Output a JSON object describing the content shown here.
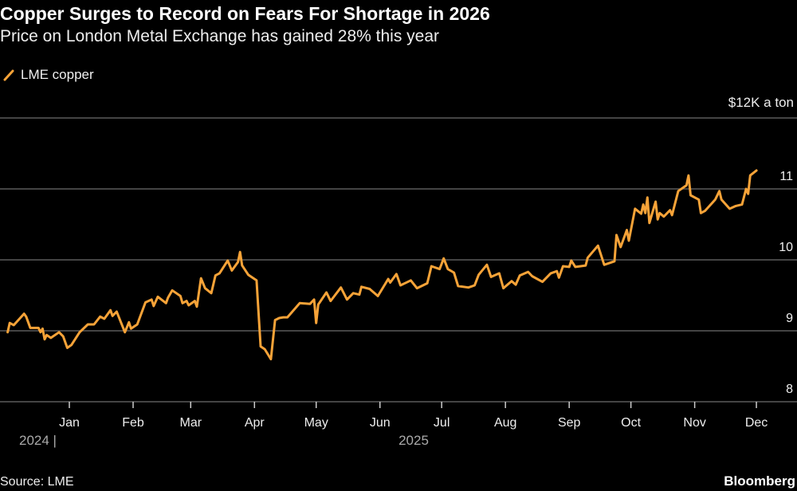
{
  "colors": {
    "line": "#f7a338",
    "grid": "#5a5a5a",
    "background": "#000000"
  },
  "chart_data": {
    "type": "line",
    "title": "Copper Surges to Record on Fears For Shortage in 2026",
    "subtitle": "Price on London Metal Exchange has gained 28% this year",
    "legend": [
      {
        "name": "LME copper",
        "icon": "line-swatch-icon"
      }
    ],
    "legend_placement": "top-left",
    "ylabel": "$12K a ton",
    "ylim": [
      8,
      12
    ],
    "yticks": [
      {
        "value": 8,
        "label": "8"
      },
      {
        "value": 9,
        "label": "9"
      },
      {
        "value": 10,
        "label": "10"
      },
      {
        "value": 11,
        "label": "11"
      },
      {
        "value": 12,
        "label": "$12K a ton"
      }
    ],
    "x_unit": "days since 2025-01-01",
    "xticks": [
      {
        "day": 0,
        "label": "Jan"
      },
      {
        "day": 31,
        "label": "Feb"
      },
      {
        "day": 59,
        "label": "Mar"
      },
      {
        "day": 90,
        "label": "Apr"
      },
      {
        "day": 120,
        "label": "May"
      },
      {
        "day": 151,
        "label": "Jun"
      },
      {
        "day": 181,
        "label": "Jul"
      },
      {
        "day": 212,
        "label": "Aug"
      },
      {
        "day": 243,
        "label": "Sep"
      },
      {
        "day": 273,
        "label": "Oct"
      },
      {
        "day": 304,
        "label": "Nov"
      },
      {
        "day": 334,
        "label": "Dec"
      }
    ],
    "years": [
      "2024 |",
      "2025"
    ],
    "grid": true,
    "series": [
      {
        "name": "LME copper",
        "points": [
          [
            -30,
            8.98
          ],
          [
            -29,
            9.11
          ],
          [
            -27,
            9.08
          ],
          [
            -22,
            9.24
          ],
          [
            -21,
            9.2
          ],
          [
            -19,
            9.04
          ],
          [
            -15,
            9.04
          ],
          [
            -14,
            8.98
          ],
          [
            -13,
            9.03
          ],
          [
            -12,
            8.88
          ],
          [
            -11,
            8.94
          ],
          [
            -9,
            8.9
          ],
          [
            -5,
            8.98
          ],
          [
            -3,
            8.92
          ],
          [
            -1,
            8.76
          ],
          [
            1,
            8.8
          ],
          [
            5,
            8.98
          ],
          [
            9,
            9.09
          ],
          [
            12,
            9.09
          ],
          [
            15,
            9.2
          ],
          [
            17,
            9.17
          ],
          [
            20,
            9.29
          ],
          [
            21,
            9.21
          ],
          [
            23,
            9.27
          ],
          [
            27,
            8.98
          ],
          [
            29,
            9.12
          ],
          [
            30,
            9.03
          ],
          [
            33,
            9.09
          ],
          [
            37,
            9.4
          ],
          [
            40,
            9.44
          ],
          [
            41,
            9.35
          ],
          [
            43,
            9.48
          ],
          [
            47,
            9.39
          ],
          [
            48,
            9.47
          ],
          [
            50,
            9.57
          ],
          [
            54,
            9.49
          ],
          [
            55,
            9.39
          ],
          [
            57,
            9.42
          ],
          [
            58,
            9.36
          ],
          [
            61,
            9.42
          ],
          [
            62,
            9.34
          ],
          [
            64,
            9.74
          ],
          [
            66,
            9.6
          ],
          [
            69,
            9.53
          ],
          [
            71,
            9.78
          ],
          [
            73,
            9.81
          ],
          [
            77,
            9.99
          ],
          [
            79,
            9.85
          ],
          [
            82,
            9.97
          ],
          [
            83,
            10.11
          ],
          [
            84,
            9.92
          ],
          [
            87,
            9.79
          ],
          [
            91,
            9.71
          ],
          [
            93,
            8.78
          ],
          [
            95,
            8.74
          ],
          [
            98,
            8.6
          ],
          [
            100,
            9.15
          ],
          [
            102,
            9.18
          ],
          [
            104,
            9.19
          ],
          [
            106,
            9.19
          ],
          [
            112,
            9.39
          ],
          [
            117,
            9.38
          ],
          [
            119,
            9.44
          ],
          [
            120,
            9.11
          ],
          [
            121,
            9.37
          ],
          [
            125,
            9.54
          ],
          [
            127,
            9.42
          ],
          [
            132,
            9.61
          ],
          [
            135,
            9.44
          ],
          [
            138,
            9.53
          ],
          [
            141,
            9.51
          ],
          [
            142,
            9.62
          ],
          [
            146,
            9.59
          ],
          [
            150,
            9.49
          ],
          [
            155,
            9.73
          ],
          [
            156,
            9.68
          ],
          [
            159,
            9.8
          ],
          [
            161,
            9.64
          ],
          [
            166,
            9.71
          ],
          [
            169,
            9.6
          ],
          [
            174,
            9.67
          ],
          [
            176,
            9.91
          ],
          [
            180,
            9.87
          ],
          [
            182,
            10.02
          ],
          [
            184,
            9.87
          ],
          [
            187,
            9.82
          ],
          [
            189,
            9.63
          ],
          [
            194,
            9.61
          ],
          [
            197,
            9.64
          ],
          [
            199,
            9.79
          ],
          [
            203,
            9.93
          ],
          [
            205,
            9.76
          ],
          [
            209,
            9.81
          ],
          [
            211,
            9.6
          ],
          [
            215,
            9.7
          ],
          [
            217,
            9.65
          ],
          [
            219,
            9.78
          ],
          [
            223,
            9.83
          ],
          [
            225,
            9.77
          ],
          [
            230,
            9.69
          ],
          [
            234,
            9.81
          ],
          [
            237,
            9.84
          ],
          [
            238,
            9.75
          ],
          [
            240,
            9.91
          ],
          [
            243,
            9.9
          ],
          [
            244,
            9.99
          ],
          [
            246,
            9.9
          ],
          [
            251,
            9.92
          ],
          [
            252,
            10.03
          ],
          [
            257,
            10.2
          ],
          [
            260,
            9.93
          ],
          [
            265,
            9.98
          ],
          [
            266,
            10.35
          ],
          [
            268,
            10.18
          ],
          [
            271,
            10.42
          ],
          [
            272,
            10.27
          ],
          [
            275,
            10.72
          ],
          [
            278,
            10.65
          ],
          [
            279,
            10.78
          ],
          [
            280,
            10.66
          ],
          [
            281,
            10.88
          ],
          [
            282,
            10.52
          ],
          [
            285,
            10.82
          ],
          [
            286,
            10.57
          ],
          [
            287,
            10.66
          ],
          [
            289,
            10.61
          ],
          [
            292,
            10.7
          ],
          [
            293,
            10.63
          ],
          [
            296,
            10.97
          ],
          [
            300,
            11.05
          ],
          [
            301,
            11.19
          ],
          [
            302,
            10.91
          ],
          [
            306,
            10.85
          ],
          [
            307,
            10.66
          ],
          [
            309,
            10.69
          ],
          [
            314,
            10.85
          ],
          [
            316,
            10.97
          ],
          [
            317,
            10.85
          ],
          [
            321,
            10.72
          ],
          [
            324,
            10.76
          ],
          [
            327,
            10.78
          ],
          [
            329,
            11.0
          ],
          [
            330,
            10.93
          ],
          [
            331,
            11.19
          ],
          [
            334,
            11.26
          ]
        ]
      }
    ],
    "source": "Source: LME",
    "brand": "Bloomberg"
  }
}
